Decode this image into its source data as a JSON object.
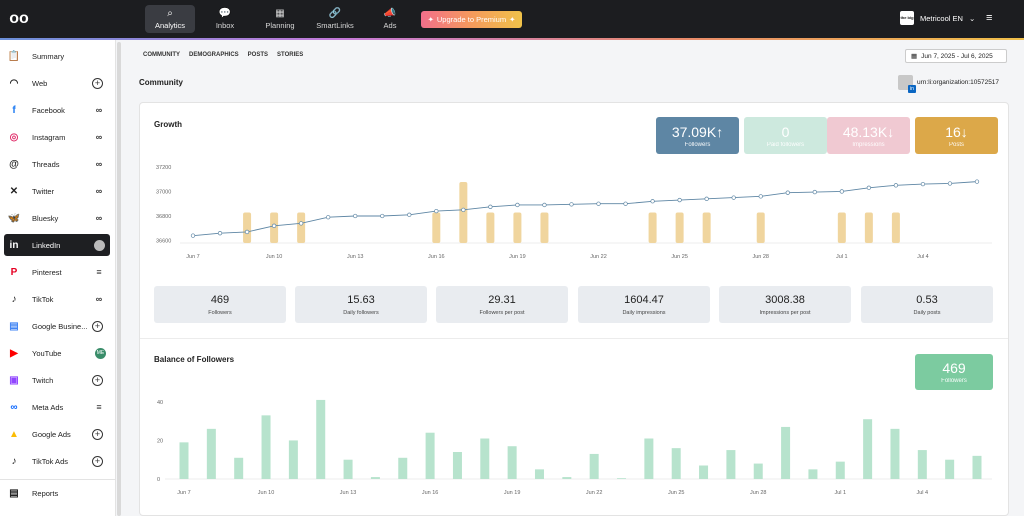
{
  "topbar": {
    "logo": "oo",
    "nav": [
      {
        "label": "Analytics",
        "icon": "analytics-icon",
        "glyph": "⌕",
        "active": true
      },
      {
        "label": "Inbox",
        "icon": "inbox-icon",
        "glyph": "💬",
        "active": false
      },
      {
        "label": "Planning",
        "icon": "calendar-icon",
        "glyph": "▦",
        "active": false
      },
      {
        "label": "SmartLinks",
        "icon": "link-icon",
        "glyph": "🔗",
        "active": false
      },
      {
        "label": "Ads",
        "icon": "megaphone-icon",
        "glyph": "📣",
        "active": false
      }
    ],
    "upgrade_label": "Upgrade to Premium",
    "brand_name": "Metricool EN",
    "brand_logo_text": "the big"
  },
  "sidebar": {
    "items": [
      {
        "label": "Summary",
        "icon": "clipboard-icon",
        "glyph": "📋",
        "color": "#222",
        "right": ""
      },
      {
        "label": "Web",
        "icon": "rss-icon",
        "glyph": "◠",
        "color": "#222",
        "right": "plus"
      },
      {
        "label": "Facebook",
        "icon": "facebook-icon",
        "glyph": "f",
        "color": "#1877f2",
        "right": "oo"
      },
      {
        "label": "Instagram",
        "icon": "instagram-icon",
        "glyph": "◎",
        "color": "#e1306c",
        "right": "oo"
      },
      {
        "label": "Threads",
        "icon": "threads-icon",
        "glyph": "@",
        "color": "#222",
        "right": "oo"
      },
      {
        "label": "Twitter",
        "icon": "x-icon",
        "glyph": "✕",
        "color": "#222",
        "right": "oo"
      },
      {
        "label": "Bluesky",
        "icon": "bluesky-icon",
        "glyph": "🦋",
        "color": "#1185fe",
        "right": "oo"
      },
      {
        "label": "LinkedIn",
        "icon": "linkedin-icon",
        "glyph": "in",
        "color": "#fff",
        "right": "avatar",
        "active": true
      },
      {
        "label": "Pinterest",
        "icon": "pinterest-icon",
        "glyph": "P",
        "color": "#e60023",
        "right": "bars"
      },
      {
        "label": "TikTok",
        "icon": "tiktok-icon",
        "glyph": "♪",
        "color": "#222",
        "right": "oo"
      },
      {
        "label": "Google Busine...",
        "icon": "google-business-icon",
        "glyph": "▤",
        "color": "#4285f4",
        "right": "plus"
      },
      {
        "label": "YouTube",
        "icon": "youtube-icon",
        "glyph": "▶",
        "color": "#ff0000",
        "right": "ME"
      },
      {
        "label": "Twitch",
        "icon": "twitch-icon",
        "glyph": "▣",
        "color": "#9146ff",
        "right": "plus"
      },
      {
        "label": "Meta Ads",
        "icon": "meta-icon",
        "glyph": "∞",
        "color": "#0866ff",
        "right": "bars"
      },
      {
        "label": "Google Ads",
        "icon": "google-ads-icon",
        "glyph": "▲",
        "color": "#fbbc04",
        "right": "plus"
      },
      {
        "label": "TikTok Ads",
        "icon": "tiktok-ads-icon",
        "glyph": "♪",
        "color": "#222",
        "right": "plus"
      },
      {
        "label": "Reports",
        "icon": "reports-icon",
        "glyph": "▤",
        "color": "#222",
        "right": ""
      }
    ]
  },
  "tabs": [
    "COMMUNITY",
    "DEMOGRAPHICS",
    "POSTS",
    "STORIES"
  ],
  "date_range": "Jun 7, 2025 - Jul 6, 2025",
  "page_title": "Community",
  "org_label": "urn:li:organization:10572517",
  "growth": {
    "title": "Growth",
    "kpis": [
      {
        "value": "37.09K",
        "arrow": "↑",
        "label": "Followers",
        "color": "#5e86a4"
      },
      {
        "value": "0",
        "arrow": "",
        "label": "Paid followers",
        "color": "#cde9de"
      },
      {
        "value": "48.13K",
        "arrow": "↓",
        "label": "Impressions",
        "color": "#f0c9d2"
      },
      {
        "value": "16",
        "arrow": "↓",
        "label": "Posts",
        "color": "#dca849"
      }
    ]
  },
  "stats": [
    {
      "value": "469",
      "label": "Followers"
    },
    {
      "value": "15.63",
      "label": "Daily followers"
    },
    {
      "value": "29.31",
      "label": "Followers per post"
    },
    {
      "value": "1604.47",
      "label": "Daily impressions"
    },
    {
      "value": "3008.38",
      "label": "Impressions per post"
    },
    {
      "value": "0.53",
      "label": "Daily posts"
    }
  ],
  "balance": {
    "title": "Balance of Followers",
    "kpi_value": "469",
    "kpi_label": "Followers",
    "kpi_color": "#7ccba0"
  },
  "chart_data": [
    {
      "type": "line",
      "title": "Growth",
      "x_ticks": [
        "Jun 7",
        "Jun 10",
        "Jun 13",
        "Jun 16",
        "Jun 19",
        "Jun 22",
        "Jun 25",
        "Jun 28",
        "Jul 1",
        "Jul 4"
      ],
      "y_ticks": [
        36600,
        36800,
        37000,
        37200
      ],
      "ylim": [
        36580,
        37240
      ],
      "series": [
        {
          "type": "line",
          "color": "#5e86a4",
          "values": [
            36640,
            36660,
            36670,
            36720,
            36740,
            36790,
            36800,
            36800,
            36810,
            36840,
            36850,
            36875,
            36890,
            36890,
            36895,
            36900,
            36900,
            36920,
            36930,
            36940,
            36950,
            36960,
            36990,
            36995,
            37000,
            37030,
            37050,
            37060,
            37065,
            37080
          ]
        },
        {
          "type": "bar",
          "color": "#f0d59e",
          "values": [
            0,
            0,
            1,
            1,
            1,
            0,
            0,
            0,
            0,
            1,
            2,
            1,
            1,
            1,
            0,
            0,
            0,
            1,
            1,
            1,
            0,
            1,
            0,
            0,
            1,
            1,
            1,
            0,
            0,
            0
          ],
          "max": 2
        }
      ]
    },
    {
      "type": "bar",
      "title": "Balance of Followers",
      "x_ticks": [
        "Jun 7",
        "Jun 10",
        "Jun 13",
        "Jun 16",
        "Jun 19",
        "Jun 22",
        "Jun 25",
        "Jun 28",
        "Jul 1",
        "Jul 4"
      ],
      "y_ticks": [
        0,
        20,
        40
      ],
      "ylim": [
        0,
        42
      ],
      "color": "#b7e3cd",
      "values": [
        19,
        26,
        11,
        33,
        20,
        41,
        10,
        1,
        11,
        24,
        14,
        21,
        17,
        5,
        1,
        13,
        0,
        21,
        16,
        7,
        15,
        8,
        27,
        5,
        9,
        31,
        26,
        15,
        10,
        12
      ]
    }
  ]
}
